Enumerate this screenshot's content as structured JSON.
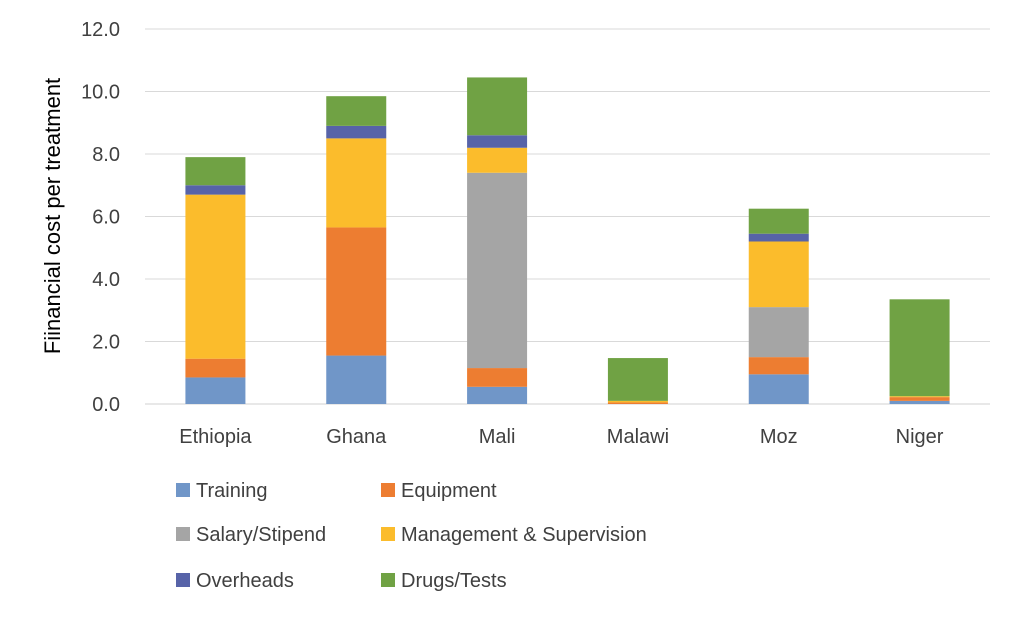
{
  "chart_data": {
    "type": "bar",
    "stacked": true,
    "ylabel": "Fiinancial cost per treatment",
    "xlabel": "",
    "ylim": [
      0,
      12
    ],
    "yticks": [
      "0.0",
      "2.0",
      "4.0",
      "6.0",
      "8.0",
      "10.0",
      "12.0"
    ],
    "grid": true,
    "legend_position": "bottom",
    "categories": [
      "Ethiopia",
      "Ghana",
      "Mali",
      "Malawi",
      "Moz",
      "Niger"
    ],
    "series": [
      {
        "name": "Training",
        "color": "#7096c8",
        "values": [
          0.85,
          1.55,
          0.55,
          0.0,
          0.95,
          0.1
        ]
      },
      {
        "name": "Equipment",
        "color": "#ed7d31",
        "values": [
          0.6,
          4.1,
          0.6,
          0.05,
          0.55,
          0.12
        ]
      },
      {
        "name": "Salary/Stipend",
        "color": "#a5a5a5",
        "values": [
          0.0,
          0.0,
          6.25,
          0.0,
          1.6,
          0.0
        ]
      },
      {
        "name": "Management & Supervision",
        "color": "#fbbc2c",
        "values": [
          5.25,
          2.85,
          0.8,
          0.05,
          2.1,
          0.03
        ]
      },
      {
        "name": "Overheads",
        "color": "#5763a8",
        "values": [
          0.3,
          0.4,
          0.4,
          0.0,
          0.25,
          0.0
        ]
      },
      {
        "name": "Drugs/Tests",
        "color": "#70a244",
        "values": [
          0.9,
          0.95,
          1.85,
          1.37,
          0.8,
          3.1
        ]
      }
    ]
  }
}
